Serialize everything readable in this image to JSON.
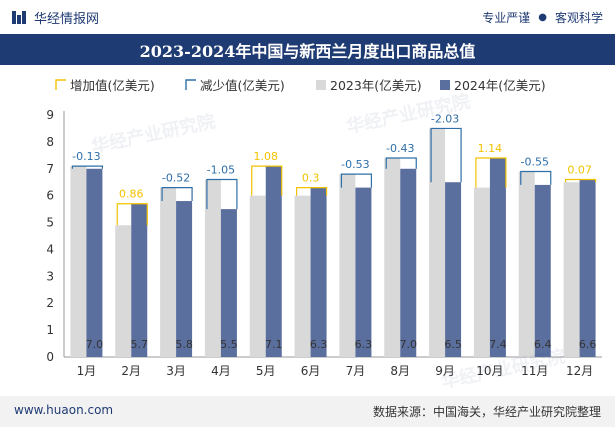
{
  "header": {
    "brand": "华经情报网",
    "tags": [
      "专业严谨",
      "客观科学"
    ]
  },
  "title": "2023-2024年中国与新西兰月度出口商品总值",
  "footer": {
    "website": "www.huaon.com",
    "source": "数据来源：中国海关，华经产业研究院整理"
  },
  "watermarks": [
    "华经产业研究院",
    "华经产业研究院",
    "华经产业研究院"
  ],
  "colors": {
    "series_2023": "#d9d9d9",
    "series_2024": "#5b6f9f",
    "increase": "#f2c200",
    "decrease": "#2e6fa8",
    "brand": "#1f3b73"
  },
  "chart_data": {
    "type": "bar",
    "title": "2023-2024年中国与新西兰月度出口商品总值",
    "categories": [
      "1月",
      "2月",
      "3月",
      "4月",
      "5月",
      "6月",
      "7月",
      "8月",
      "9月",
      "10月",
      "11月",
      "12月"
    ],
    "series": [
      {
        "name": "2023年(亿美元)",
        "values": [
          7.1,
          4.9,
          6.3,
          6.6,
          6.0,
          6.0,
          6.8,
          7.4,
          8.5,
          6.3,
          6.9,
          6.5
        ]
      },
      {
        "name": "2024年(亿美元)",
        "values": [
          7.0,
          5.7,
          5.8,
          5.5,
          7.1,
          6.3,
          6.3,
          7.0,
          6.5,
          7.4,
          6.4,
          6.6
        ]
      }
    ],
    "change": {
      "names": {
        "increase": "增加值(亿美元)",
        "decrease": "减少值(亿美元)"
      },
      "labels": [
        "-0.13",
        "0.86",
        "-0.52",
        "-1.05",
        "1.08",
        "0.3",
        "-0.53",
        "-0.43",
        "-2.03",
        "1.14",
        "-0.55",
        "0.07"
      ],
      "values": [
        -0.13,
        0.86,
        -0.52,
        -1.05,
        1.08,
        0.3,
        -0.53,
        -0.43,
        -2.03,
        1.14,
        -0.55,
        0.07
      ]
    },
    "value_labels_2024": [
      "7.0",
      "5.7",
      "5.8",
      "5.5",
      "7.1",
      "6.3",
      "6.3",
      "7.0",
      "6.5",
      "7.4",
      "6.4",
      "6.6"
    ],
    "legend": [
      "增加值(亿美元)",
      "减少值(亿美元)",
      "2023年(亿美元)",
      "2024年(亿美元)"
    ],
    "legend_position": "top",
    "ylim": [
      0,
      9
    ],
    "yticks": [
      "0",
      "1",
      "2",
      "3",
      "4",
      "5",
      "6",
      "7",
      "8",
      "9"
    ],
    "xlabel": "",
    "ylabel": ""
  }
}
